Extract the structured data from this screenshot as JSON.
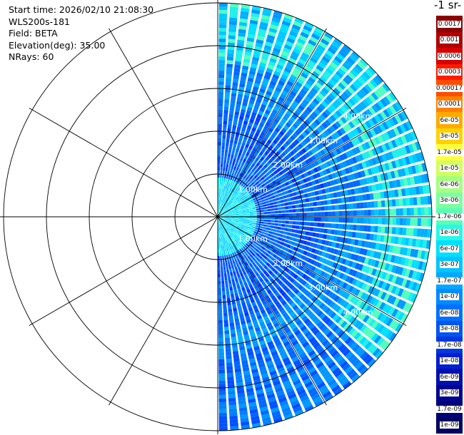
{
  "header": {
    "start_time": "Start time: 2026/02/10 21:08:30",
    "instrument": "WLS200s-181",
    "field": "Field: BETA",
    "elevation": "Elevation(deg): 35.00",
    "nrays": "NRays: 60"
  },
  "colorbar": {
    "title": "-1 sr-",
    "labels": [
      "0.0017",
      "0.001",
      "0.0006",
      "0.0003",
      "0.00017",
      "0.0001",
      "6e-05",
      "3e-05",
      "1.7e-05",
      "1e-05",
      "6e-06",
      "3e-06",
      "1.7e-06",
      "1e-06",
      "6e-07",
      "3e-07",
      "1.7e-07",
      "1e-07",
      "6e-08",
      "3e-08",
      "1.7e-08",
      "1e-08",
      "6e-09",
      "3e-09",
      "1.7e-09",
      "1e-09"
    ],
    "colors": [
      "#8b0000",
      "#b00000",
      "#d80000",
      "#ff1a00",
      "#ff4d00",
      "#ff8000",
      "#ffaa00",
      "#ffd200",
      "#ffff40",
      "#d2ff60",
      "#a5ff80",
      "#7dff9f",
      "#5affb5",
      "#2af7e6",
      "#00e0ff",
      "#00c4ff",
      "#00a8ff",
      "#008cff",
      "#0070ff",
      "#0055f0",
      "#0039e0",
      "#001fd0",
      "#0010b0",
      "#000490",
      "#00007a",
      "#000060"
    ]
  },
  "chart_data": {
    "type": "heatmap",
    "projection": "polar (PPI scan, right half-plane)",
    "field": "BETA",
    "nrays": 60,
    "range_rings_km": [
      1,
      2,
      3,
      4,
      5
    ],
    "ring_labels_upper": [
      "1.00km",
      "2.00km",
      "3.00km",
      "4.00km"
    ],
    "ring_labels_lower": [
      "1.00km",
      "2.00km",
      "3.00km",
      "4.00km"
    ],
    "spoke_angles_deg": [
      0,
      30,
      60,
      90,
      120,
      150,
      180,
      210,
      240,
      270,
      300,
      330
    ],
    "max_range_km": 5.0,
    "sector_deg": [
      0,
      180
    ],
    "color_scale": "log10, 1e-09 to 0.0017",
    "dominant_value_range": "1e-08 to 1.7e-06"
  }
}
